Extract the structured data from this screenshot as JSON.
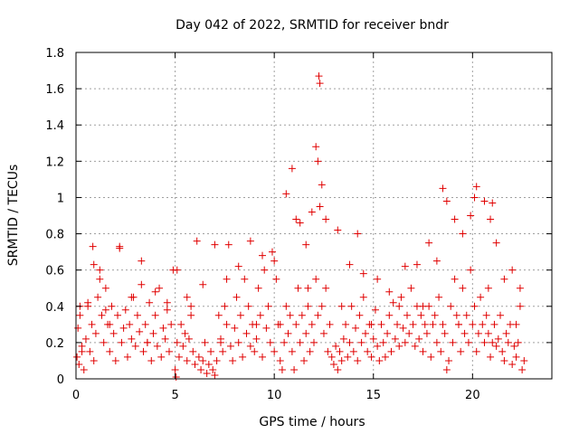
{
  "chart_data": {
    "type": "scatter",
    "title": "Day 042 of 2022, SRMTID for receiver bndr",
    "xlabel": "GPS time / hours",
    "ylabel": "SRMTID / TECUs",
    "xlim": [
      0,
      24
    ],
    "ylim": [
      0,
      1.8
    ],
    "xticks": [
      0,
      5,
      10,
      15,
      20
    ],
    "xtick_labels": [
      "0",
      "5",
      "10",
      "15",
      "20"
    ],
    "yticks": [
      0,
      0.2,
      0.4,
      0.6,
      0.8,
      1,
      1.2,
      1.4,
      1.6,
      1.8
    ],
    "ytick_labels": [
      "0",
      "0.2",
      "0.4",
      "0.6",
      "0.8",
      "1",
      "1.2",
      "1.4",
      "1.6",
      "1.8"
    ],
    "grid": true,
    "marker": "+",
    "color": "#e00000",
    "series": [
      {
        "name": "SRMTID",
        "x": [
          0.05,
          0.1,
          0.15,
          0.2,
          0.3,
          0.4,
          0.5,
          0.6,
          0.7,
          0.8,
          0.85,
          0.9,
          1.0,
          1.1,
          1.2,
          1.3,
          1.4,
          1.5,
          1.6,
          1.7,
          1.8,
          1.9,
          2.0,
          2.1,
          2.2,
          2.3,
          2.4,
          2.5,
          2.6,
          2.7,
          2.8,
          2.9,
          3.0,
          3.1,
          3.2,
          3.3,
          3.4,
          3.5,
          3.6,
          3.7,
          3.8,
          3.9,
          4.0,
          4.1,
          4.2,
          4.3,
          4.4,
          4.5,
          4.6,
          4.7,
          4.8,
          4.9,
          5.0,
          5.05,
          5.1,
          5.2,
          5.3,
          5.4,
          5.5,
          5.6,
          5.7,
          5.8,
          5.9,
          6.0,
          6.1,
          6.2,
          6.3,
          6.4,
          6.5,
          6.6,
          6.7,
          6.8,
          6.9,
          7.0,
          7.1,
          7.2,
          7.3,
          7.4,
          7.5,
          7.6,
          7.7,
          7.8,
          7.9,
          8.0,
          8.1,
          8.2,
          8.3,
          8.4,
          8.5,
          8.6,
          8.7,
          8.8,
          8.9,
          9.0,
          9.1,
          9.2,
          9.3,
          9.4,
          9.5,
          9.6,
          9.7,
          9.8,
          9.9,
          10.0,
          10.1,
          10.2,
          10.3,
          10.4,
          10.5,
          10.6,
          10.7,
          10.8,
          10.9,
          11.0,
          11.1,
          11.2,
          11.3,
          11.4,
          11.5,
          11.6,
          11.7,
          11.8,
          11.9,
          12.0,
          12.1,
          12.2,
          12.3,
          12.4,
          12.5,
          12.6,
          12.7,
          12.8,
          12.9,
          13.0,
          13.1,
          13.2,
          13.3,
          13.4,
          13.5,
          13.6,
          13.7,
          13.8,
          13.9,
          14.0,
          14.1,
          14.2,
          14.3,
          14.4,
          14.5,
          14.6,
          14.7,
          14.8,
          14.9,
          15.0,
          15.1,
          15.2,
          15.3,
          15.4,
          15.5,
          15.6,
          15.7,
          15.8,
          15.9,
          16.0,
          16.1,
          16.2,
          16.3,
          16.4,
          16.5,
          16.6,
          16.7,
          16.8,
          16.9,
          17.0,
          17.1,
          17.2,
          17.3,
          17.4,
          17.5,
          17.6,
          17.7,
          17.8,
          17.9,
          18.0,
          18.1,
          18.2,
          18.3,
          18.4,
          18.5,
          18.6,
          18.7,
          18.8,
          18.9,
          19.0,
          19.1,
          19.2,
          19.3,
          19.4,
          19.5,
          19.6,
          19.7,
          19.8,
          19.9,
          20.0,
          20.1,
          20.2,
          20.3,
          20.4,
          20.5,
          20.6,
          20.7,
          20.8,
          20.9,
          21.0,
          21.1,
          21.2,
          21.3,
          21.4,
          21.5,
          21.6,
          21.7,
          21.8,
          21.9,
          22.0,
          22.1,
          22.2,
          22.3,
          22.4,
          22.5,
          22.6,
          0.3,
          0.6,
          0.9,
          1.2,
          1.5,
          2.2,
          2.8,
          3.3,
          4.0,
          4.6,
          5.1,
          5.6,
          6.4,
          7.0,
          7.6,
          8.2,
          8.8,
          9.4,
          10.0,
          10.6,
          10.9,
          11.1,
          11.3,
          11.6,
          11.9,
          12.1,
          12.2,
          12.25,
          12.3,
          12.4,
          12.6,
          13.2,
          13.8,
          14.2,
          14.5,
          15.2,
          15.8,
          16.6,
          17.2,
          17.8,
          18.2,
          18.5,
          18.7,
          19.1,
          19.5,
          19.9,
          20.1,
          20.2,
          20.6,
          20.9,
          21.0,
          21.2,
          21.6,
          22.0,
          22.4,
          0.2,
          1.7,
          3.6,
          5.8,
          7.3,
          9.1,
          10.3,
          11.7,
          13.4,
          14.9,
          16.3,
          17.5,
          19.3,
          20.8,
          22.2
        ],
        "y": [
          0.12,
          0.28,
          0.08,
          0.35,
          0.18,
          0.05,
          0.22,
          0.4,
          0.15,
          0.3,
          0.73,
          0.1,
          0.25,
          0.45,
          0.6,
          0.35,
          0.2,
          0.5,
          0.3,
          0.15,
          0.4,
          0.25,
          0.1,
          0.35,
          0.73,
          0.2,
          0.28,
          0.38,
          0.12,
          0.3,
          0.22,
          0.45,
          0.18,
          0.35,
          0.26,
          0.65,
          0.15,
          0.3,
          0.2,
          0.42,
          0.1,
          0.25,
          0.35,
          0.18,
          0.5,
          0.12,
          0.28,
          0.22,
          0.38,
          0.15,
          0.3,
          0.6,
          0.05,
          0.01,
          0.2,
          0.12,
          0.3,
          0.18,
          0.25,
          0.1,
          0.22,
          0.35,
          0.15,
          0.08,
          0.76,
          0.12,
          0.05,
          0.1,
          0.2,
          0.03,
          0.08,
          0.15,
          0.05,
          0.02,
          0.1,
          0.35,
          0.22,
          0.15,
          0.4,
          0.3,
          0.74,
          0.18,
          0.1,
          0.28,
          0.45,
          0.2,
          0.35,
          0.12,
          0.55,
          0.25,
          0.4,
          0.18,
          0.3,
          0.15,
          0.22,
          0.5,
          0.35,
          0.12,
          0.6,
          0.28,
          0.4,
          0.2,
          0.7,
          0.15,
          0.55,
          0.3,
          0.1,
          0.05,
          0.2,
          0.4,
          0.25,
          0.35,
          0.15,
          0.05,
          0.3,
          0.5,
          0.2,
          0.35,
          0.1,
          0.25,
          0.4,
          0.15,
          0.3,
          0.2,
          0.55,
          0.35,
          0.95,
          0.4,
          0.25,
          0.5,
          0.15,
          0.3,
          0.12,
          0.08,
          0.18,
          0.05,
          0.15,
          0.1,
          0.22,
          0.3,
          0.12,
          0.2,
          0.4,
          0.15,
          0.28,
          0.1,
          0.35,
          0.2,
          0.45,
          0.25,
          0.15,
          0.3,
          0.12,
          0.22,
          0.38,
          0.18,
          0.1,
          0.3,
          0.2,
          0.12,
          0.25,
          0.35,
          0.15,
          0.42,
          0.22,
          0.3,
          0.18,
          0.45,
          0.28,
          0.2,
          0.35,
          0.25,
          0.5,
          0.3,
          0.18,
          0.4,
          0.22,
          0.35,
          0.15,
          0.3,
          0.25,
          0.4,
          0.12,
          0.3,
          0.35,
          0.2,
          0.45,
          0.15,
          0.3,
          0.25,
          0.05,
          0.1,
          0.4,
          0.2,
          0.55,
          0.35,
          0.3,
          0.15,
          0.5,
          0.25,
          0.35,
          0.2,
          0.6,
          0.3,
          0.4,
          0.15,
          0.25,
          0.45,
          0.3,
          0.2,
          0.35,
          0.25,
          0.12,
          0.2,
          0.3,
          0.18,
          0.22,
          0.35,
          0.15,
          0.1,
          0.25,
          0.2,
          0.3,
          0.08,
          0.18,
          0.12,
          0.2,
          0.4,
          0.05,
          0.1,
          0.15,
          0.42,
          0.63,
          0.55,
          0.38,
          0.72,
          0.45,
          0.52,
          0.48,
          0.42,
          0.6,
          0.45,
          0.52,
          0.74,
          0.55,
          0.62,
          0.76,
          0.68,
          0.65,
          1.02,
          1.16,
          0.88,
          0.86,
          0.74,
          0.92,
          1.28,
          1.2,
          1.67,
          1.63,
          1.07,
          0.88,
          0.82,
          0.63,
          0.8,
          0.58,
          0.55,
          0.48,
          0.62,
          0.63,
          0.75,
          0.65,
          1.05,
          0.98,
          0.88,
          0.8,
          0.9,
          1.0,
          1.06,
          0.98,
          0.88,
          0.97,
          0.75,
          0.55,
          0.6,
          0.5,
          0.4,
          0.3,
          0.2,
          0.4,
          0.2,
          0.3,
          0.3,
          0.5,
          0.4,
          0.3,
          0.4,
          0.4,
          0.3,
          0.5,
          0.3
        ]
      }
    ]
  }
}
